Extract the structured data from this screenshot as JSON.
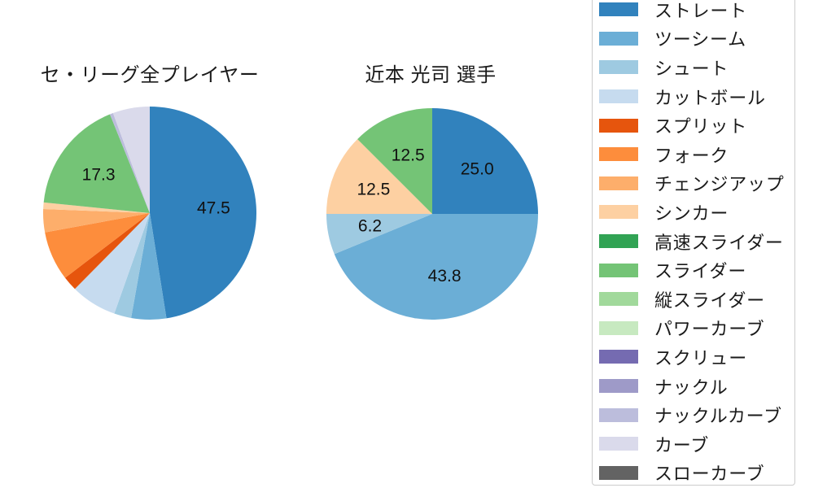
{
  "chart_data": [
    {
      "type": "pie",
      "title": "セ・リーグ全プレイヤー",
      "direction": "clockwise",
      "start_angle": "12-oclock",
      "slices": [
        {
          "label": "ストレート",
          "value": 47.5,
          "value_label": "47.5",
          "color": "#3182bd"
        },
        {
          "label": "ツーシーム",
          "value": 5.3,
          "value_label": null,
          "color": "#6baed6"
        },
        {
          "label": "シュート",
          "value": 2.6,
          "value_label": null,
          "color": "#9ecae1"
        },
        {
          "label": "カットボール",
          "value": 7.0,
          "value_label": null,
          "color": "#c6dbef"
        },
        {
          "label": "スプリット",
          "value": 2.2,
          "value_label": null,
          "color": "#e6550d"
        },
        {
          "label": "フォーク",
          "value": 7.5,
          "value_label": null,
          "color": "#fd8d3c"
        },
        {
          "label": "チェンジアップ",
          "value": 3.5,
          "value_label": null,
          "color": "#fdae6b"
        },
        {
          "label": "シンカー",
          "value": 1.0,
          "value_label": null,
          "color": "#fdd0a2"
        },
        {
          "label": "スライダー",
          "value": 17.3,
          "value_label": "17.3",
          "color": "#74c476"
        },
        {
          "label": "ナックルカーブ",
          "value": 0.5,
          "value_label": null,
          "color": "#bcbddc"
        },
        {
          "label": "カーブ",
          "value": 5.6,
          "value_label": null,
          "color": "#dadaeb"
        }
      ]
    },
    {
      "type": "pie",
      "title": "近本 光司 選手",
      "direction": "clockwise",
      "start_angle": "12-oclock",
      "slices": [
        {
          "label": "ストレート",
          "value": 25.0,
          "value_label": "25.0",
          "color": "#3182bd"
        },
        {
          "label": "ツーシーム",
          "value": 43.8,
          "value_label": "43.8",
          "color": "#6baed6"
        },
        {
          "label": "シュート",
          "value": 6.2,
          "value_label": "6.2",
          "color": "#9ecae1"
        },
        {
          "label": "シンカー",
          "value": 12.5,
          "value_label": "12.5",
          "color": "#fdd0a2"
        },
        {
          "label": "スライダー",
          "value": 12.5,
          "value_label": "12.5",
          "color": "#74c476"
        }
      ]
    }
  ],
  "legend": {
    "position": "right",
    "items": [
      {
        "label": "ストレート",
        "color": "#3182bd"
      },
      {
        "label": "ツーシーム",
        "color": "#6baed6"
      },
      {
        "label": "シュート",
        "color": "#9ecae1"
      },
      {
        "label": "カットボール",
        "color": "#c6dbef"
      },
      {
        "label": "スプリット",
        "color": "#e6550d"
      },
      {
        "label": "フォーク",
        "color": "#fd8d3c"
      },
      {
        "label": "チェンジアップ",
        "color": "#fdae6b"
      },
      {
        "label": "シンカー",
        "color": "#fdd0a2"
      },
      {
        "label": "高速スライダー",
        "color": "#31a354"
      },
      {
        "label": "スライダー",
        "color": "#74c476"
      },
      {
        "label": "縦スライダー",
        "color": "#a1d99b"
      },
      {
        "label": "パワーカーブ",
        "color": "#c7e9c0"
      },
      {
        "label": "スクリュー",
        "color": "#756bb1"
      },
      {
        "label": "ナックル",
        "color": "#9e9ac8"
      },
      {
        "label": "ナックルカーブ",
        "color": "#bcbddc"
      },
      {
        "label": "カーブ",
        "color": "#dadaeb"
      },
      {
        "label": "スローカーブ",
        "color": "#636363"
      }
    ]
  }
}
